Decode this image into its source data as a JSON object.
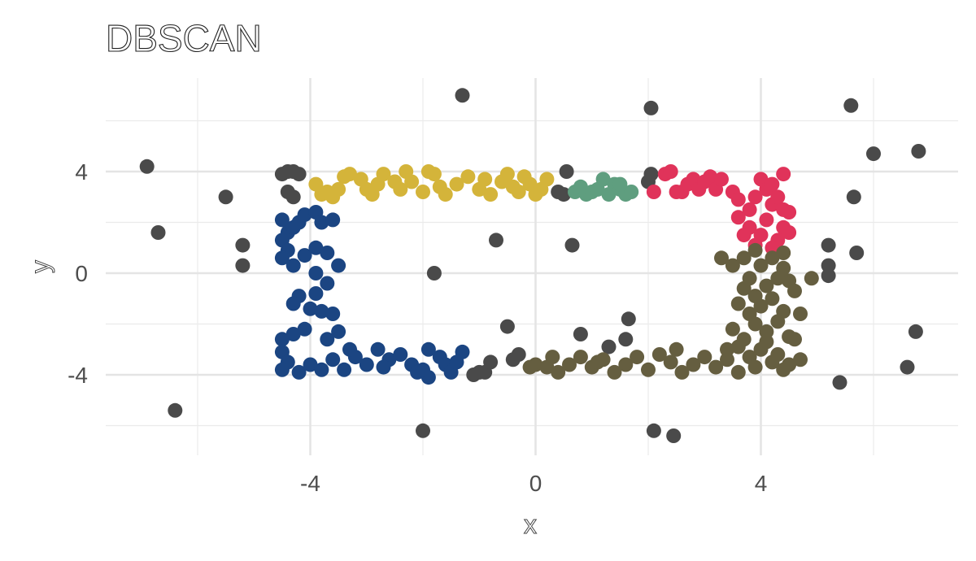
{
  "chart_data": {
    "type": "scatter",
    "title": "DBSCAN",
    "xlabel": "x",
    "ylabel": "y",
    "xlim": [
      -7.5,
      7.5
    ],
    "ylim": [
      -7,
      7
    ],
    "x_ticks": [
      -4,
      0,
      4
    ],
    "y_ticks": [
      4,
      0,
      -4
    ],
    "x_tick_labels": [
      "-4",
      "0",
      "4"
    ],
    "y_tick_labels": [
      "4",
      "0",
      "-4"
    ],
    "grid": true,
    "legend": "none",
    "series": [
      {
        "color": "#4a4a4a",
        "points": [
          [
            -6.9,
            4.2
          ],
          [
            -6.7,
            1.6
          ],
          [
            -6.4,
            -5.4
          ],
          [
            -5.5,
            3.0
          ],
          [
            -5.2,
            1.1
          ],
          [
            -5.2,
            0.3
          ],
          [
            -4.5,
            3.9
          ],
          [
            -4.4,
            4.0
          ],
          [
            -4.3,
            4.0
          ],
          [
            -4.2,
            3.9
          ],
          [
            -4.4,
            3.2
          ],
          [
            -4.3,
            3.0
          ],
          [
            -1.3,
            7.0
          ],
          [
            -1.8,
            0.0
          ],
          [
            -2.0,
            -6.2
          ],
          [
            -1.1,
            -4.0
          ],
          [
            -1.0,
            -3.9
          ],
          [
            -0.9,
            -3.9
          ],
          [
            -0.8,
            -3.5
          ],
          [
            -0.7,
            1.3
          ],
          [
            -0.5,
            -2.1
          ],
          [
            -0.4,
            -3.4
          ],
          [
            -0.3,
            -3.2
          ],
          [
            0.4,
            3.2
          ],
          [
            0.5,
            3.1
          ],
          [
            0.55,
            4.0
          ],
          [
            0.65,
            1.1
          ],
          [
            0.8,
            -2.4
          ],
          [
            1.3,
            -2.9
          ],
          [
            1.6,
            -2.6
          ],
          [
            1.65,
            -1.8
          ],
          [
            2.0,
            3.6
          ],
          [
            2.05,
            3.9
          ],
          [
            2.05,
            6.5
          ],
          [
            2.1,
            -6.2
          ],
          [
            2.45,
            -6.4
          ],
          [
            5.2,
            1.1
          ],
          [
            5.2,
            0.3
          ],
          [
            5.2,
            -0.1
          ],
          [
            5.4,
            -4.3
          ],
          [
            5.6,
            6.6
          ],
          [
            5.65,
            3.0
          ],
          [
            5.7,
            0.8
          ],
          [
            6.0,
            4.7
          ],
          [
            6.6,
            -3.7
          ],
          [
            6.75,
            -2.3
          ],
          [
            6.8,
            4.8
          ]
        ]
      },
      {
        "color": "#1b4582",
        "points": [
          [
            -4.5,
            2.1
          ],
          [
            -4.4,
            1.6
          ],
          [
            -4.5,
            1.3
          ],
          [
            -4.3,
            1.8
          ],
          [
            -4.2,
            2.0
          ],
          [
            -4.1,
            2.3
          ],
          [
            -3.9,
            2.4
          ],
          [
            -3.8,
            2.0
          ],
          [
            -3.6,
            2.1
          ],
          [
            -4.4,
            0.9
          ],
          [
            -4.5,
            0.6
          ],
          [
            -4.3,
            0.3
          ],
          [
            -4.1,
            0.7
          ],
          [
            -3.9,
            1.0
          ],
          [
            -3.7,
            0.8
          ],
          [
            -3.5,
            0.3
          ],
          [
            -3.9,
            0.0
          ],
          [
            -3.7,
            -0.4
          ],
          [
            -3.9,
            -0.8
          ],
          [
            -4.2,
            -0.9
          ],
          [
            -4.3,
            -1.2
          ],
          [
            -4.0,
            -1.4
          ],
          [
            -3.8,
            -1.5
          ],
          [
            -3.6,
            -1.6
          ],
          [
            -3.5,
            -2.3
          ],
          [
            -3.7,
            -2.6
          ],
          [
            -4.1,
            -2.2
          ],
          [
            -4.3,
            -2.4
          ],
          [
            -4.5,
            -2.6
          ],
          [
            -4.5,
            -3.1
          ],
          [
            -4.4,
            -3.5
          ],
          [
            -4.5,
            -3.8
          ],
          [
            -4.2,
            -3.9
          ],
          [
            -4.0,
            -3.6
          ],
          [
            -3.8,
            -3.8
          ],
          [
            -3.6,
            -3.4
          ],
          [
            -3.4,
            -3.8
          ],
          [
            -3.2,
            -3.3
          ],
          [
            -3.0,
            -3.6
          ],
          [
            -2.8,
            -3.0
          ],
          [
            -2.6,
            -3.4
          ],
          [
            -2.4,
            -3.2
          ],
          [
            -2.2,
            -3.6
          ],
          [
            -2.1,
            -3.9
          ],
          [
            -1.9,
            -4.1
          ],
          [
            -1.9,
            -3.0
          ],
          [
            -1.7,
            -3.3
          ],
          [
            -1.6,
            -3.6
          ],
          [
            -1.5,
            -3.9
          ],
          [
            -1.3,
            -3.1
          ],
          [
            -1.4,
            -3.5
          ],
          [
            -2.0,
            -3.8
          ],
          [
            -2.7,
            -3.7
          ],
          [
            -3.3,
            -3.0
          ]
        ]
      },
      {
        "color": "#d4b43a",
        "points": [
          [
            -3.9,
            3.5
          ],
          [
            -3.7,
            3.2
          ],
          [
            -3.6,
            3.0
          ],
          [
            -3.5,
            3.3
          ],
          [
            -3.4,
            3.8
          ],
          [
            -3.3,
            3.9
          ],
          [
            -3.1,
            3.7
          ],
          [
            -3.0,
            3.3
          ],
          [
            -2.8,
            3.5
          ],
          [
            -2.7,
            3.9
          ],
          [
            -2.5,
            3.6
          ],
          [
            -2.4,
            3.3
          ],
          [
            -2.3,
            4.0
          ],
          [
            -2.2,
            3.6
          ],
          [
            -2.0,
            3.2
          ],
          [
            -1.8,
            3.9
          ],
          [
            -1.7,
            3.4
          ],
          [
            -1.6,
            3.1
          ],
          [
            -1.4,
            3.5
          ],
          [
            -1.2,
            3.8
          ],
          [
            -1.0,
            3.3
          ],
          [
            -0.9,
            3.7
          ],
          [
            -0.8,
            3.1
          ],
          [
            -0.6,
            3.6
          ],
          [
            -0.5,
            3.9
          ],
          [
            -0.4,
            3.4
          ],
          [
            -0.3,
            3.2
          ],
          [
            -0.2,
            3.8
          ],
          [
            -0.1,
            3.5
          ],
          [
            0.0,
            3.1
          ],
          [
            0.2,
            3.7
          ],
          [
            0.1,
            3.3
          ],
          [
            -1.9,
            4.0
          ],
          [
            -2.9,
            3.1
          ],
          [
            -3.8,
            3.1
          ]
        ]
      },
      {
        "color": "#5f9e7f",
        "points": [
          [
            0.7,
            3.2
          ],
          [
            0.8,
            3.4
          ],
          [
            0.9,
            3.1
          ],
          [
            1.0,
            3.2
          ],
          [
            1.1,
            3.3
          ],
          [
            1.2,
            3.7
          ],
          [
            1.3,
            3.1
          ],
          [
            1.4,
            3.5
          ],
          [
            1.5,
            3.3
          ],
          [
            1.6,
            3.1
          ],
          [
            1.7,
            3.2
          ],
          [
            1.5,
            3.5
          ]
        ]
      },
      {
        "color": "#e0335a",
        "points": [
          [
            2.1,
            3.2
          ],
          [
            2.3,
            3.9
          ],
          [
            2.4,
            4.0
          ],
          [
            2.6,
            3.2
          ],
          [
            2.7,
            3.5
          ],
          [
            2.8,
            3.7
          ],
          [
            2.9,
            3.3
          ],
          [
            3.0,
            3.6
          ],
          [
            3.1,
            3.8
          ],
          [
            3.2,
            3.3
          ],
          [
            3.3,
            3.7
          ],
          [
            3.5,
            3.2
          ],
          [
            3.6,
            2.9
          ],
          [
            3.8,
            2.5
          ],
          [
            3.9,
            3.0
          ],
          [
            4.0,
            3.7
          ],
          [
            4.1,
            3.3
          ],
          [
            4.2,
            2.7
          ],
          [
            4.3,
            3.0
          ],
          [
            4.4,
            2.5
          ],
          [
            4.4,
            1.8
          ],
          [
            4.3,
            1.3
          ],
          [
            4.2,
            1.0
          ],
          [
            4.0,
            1.5
          ],
          [
            3.8,
            1.8
          ],
          [
            3.6,
            2.2
          ],
          [
            3.7,
            1.5
          ],
          [
            4.4,
            3.9
          ],
          [
            4.5,
            2.4
          ],
          [
            4.1,
            2.1
          ],
          [
            3.9,
            1.1
          ],
          [
            4.5,
            1.6
          ],
          [
            4.2,
            3.5
          ],
          [
            2.5,
            3.2
          ]
        ]
      },
      {
        "color": "#655e40",
        "points": [
          [
            3.7,
            0.6
          ],
          [
            3.9,
            0.9
          ],
          [
            4.0,
            0.3
          ],
          [
            4.2,
            0.6
          ],
          [
            4.4,
            0.2
          ],
          [
            4.3,
            -0.2
          ],
          [
            4.1,
            -0.5
          ],
          [
            3.9,
            -0.9
          ],
          [
            3.7,
            -0.6
          ],
          [
            3.6,
            -1.2
          ],
          [
            3.8,
            -1.6
          ],
          [
            4.0,
            -1.3
          ],
          [
            4.2,
            -1.0
          ],
          [
            4.4,
            -1.5
          ],
          [
            4.3,
            -1.9
          ],
          [
            4.1,
            -2.3
          ],
          [
            3.9,
            -2.0
          ],
          [
            3.7,
            -2.6
          ],
          [
            3.6,
            -2.9
          ],
          [
            3.8,
            -3.3
          ],
          [
            4.0,
            -3.0
          ],
          [
            4.2,
            -3.5
          ],
          [
            4.4,
            -3.8
          ],
          [
            4.3,
            -3.2
          ],
          [
            4.1,
            -2.7
          ],
          [
            3.9,
            -3.7
          ],
          [
            3.6,
            -3.9
          ],
          [
            3.4,
            -3.4
          ],
          [
            3.2,
            -3.7
          ],
          [
            3.0,
            -3.3
          ],
          [
            2.8,
            -3.6
          ],
          [
            2.6,
            -3.9
          ],
          [
            2.4,
            -3.5
          ],
          [
            2.2,
            -3.2
          ],
          [
            2.0,
            -3.8
          ],
          [
            1.8,
            -3.3
          ],
          [
            1.6,
            -3.6
          ],
          [
            1.4,
            -3.9
          ],
          [
            1.2,
            -3.4
          ],
          [
            1.0,
            -3.7
          ],
          [
            0.8,
            -3.3
          ],
          [
            0.6,
            -3.6
          ],
          [
            0.4,
            -3.9
          ],
          [
            0.3,
            -3.3
          ],
          [
            0.2,
            -3.7
          ],
          [
            0.0,
            -3.6
          ],
          [
            -0.1,
            -3.7
          ],
          [
            3.3,
            0.6
          ],
          [
            3.5,
            0.3
          ],
          [
            4.5,
            -0.3
          ],
          [
            4.6,
            -0.7
          ],
          [
            4.7,
            -1.6
          ],
          [
            4.5,
            -2.5
          ],
          [
            4.6,
            -2.6
          ],
          [
            4.7,
            -3.4
          ],
          [
            4.5,
            -3.6
          ],
          [
            3.5,
            -2.2
          ],
          [
            3.4,
            -3.0
          ],
          [
            4.4,
            0.8
          ],
          [
            4.9,
            -0.2
          ],
          [
            3.8,
            -0.2
          ],
          [
            2.5,
            -3.0
          ],
          [
            1.1,
            -3.5
          ]
        ]
      }
    ]
  }
}
